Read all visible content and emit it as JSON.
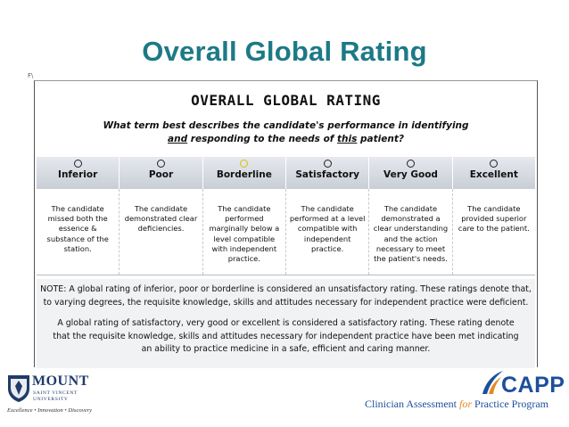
{
  "slide": {
    "title": "Overall Global Rating",
    "corner_mark": "F\\"
  },
  "form": {
    "title": "OVERALL GLOBAL RATING",
    "question_line1": "What term best describes the candidate's performance in identifying",
    "question_line2_pre": "and",
    "question_line2_mid": " responding to the needs of ",
    "question_line2_this": "this",
    "question_line2_post": " patient?",
    "ratings": [
      {
        "label": "Inferior",
        "selected": false,
        "desc": "The candidate missed both the essence & substance of the station."
      },
      {
        "label": "Poor",
        "selected": false,
        "desc": "The candidate demonstrated clear deficiencies."
      },
      {
        "label": "Borderline",
        "selected": true,
        "desc": "The candidate performed marginally below a level compatible with independent practice."
      },
      {
        "label": "Satisfactory",
        "selected": false,
        "desc": "The candidate performed at a level compatible with independent practice."
      },
      {
        "label": "Very Good",
        "selected": false,
        "desc": "The candidate demonstrated a clear understanding and the action necessary to meet the patient's needs."
      },
      {
        "label": "Excellent",
        "selected": false,
        "desc": "The candidate provided superior care to the patient."
      }
    ],
    "selected_color": "#d9c300",
    "notes": {
      "line1": "NOTE:  A global rating of inferior, poor or borderline is considered an unsatisfactory rating. These ratings denote that,",
      "line2": "to varying degrees, the requisite knowledge, skills and attitudes necessary for independent practice were deficient.",
      "line3": "A global rating of satisfactory, very good or excellent is considered a satisfactory rating. These rating denote",
      "line4": "that the requisite knowledge, skills and attitudes necessary for independent practice have been met indicating",
      "line5": "an ability to practice medicine in a safe, efficient and caring manner."
    }
  },
  "logos": {
    "msvu_name": "MOUNT",
    "msvu_sub1": "SAINT VINCENT",
    "msvu_sub2": "UNIVERSITY",
    "msvu_tagline": "Excellence • Innovation • Discovery",
    "capp_word": "CAPP",
    "capp_full_1": "Clinician Assessment ",
    "capp_full_2": "for",
    "capp_full_3": " Practice Program"
  },
  "colors": {
    "title": "#1c7a86",
    "msvu_blue": "#1f3b6a",
    "capp_blue": "#1d4f9a",
    "capp_orange": "#e58a1f"
  }
}
